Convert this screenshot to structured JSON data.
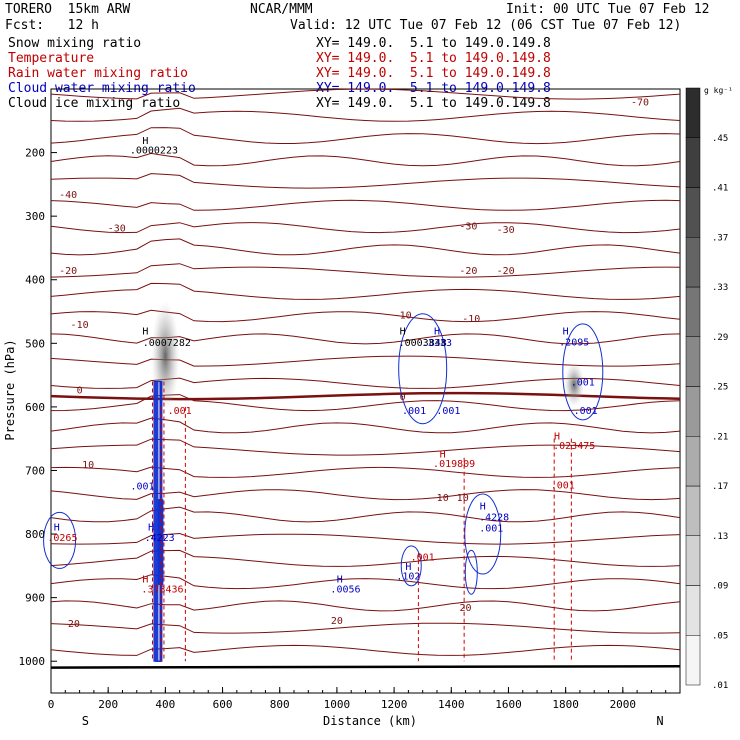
{
  "header": {
    "model": "TORERO  15km ARW",
    "center": "NCAR/MMM",
    "init": "Init: 00 UTC Tue 07 Feb 12",
    "fcst": "Fcst:   12 h",
    "valid": "Valid: 12 UTC Tue 07 Feb 12 (06 CST Tue 07 Feb 12)"
  },
  "fields": [
    {
      "name": "Snow mixing ratio",
      "color": "#000000",
      "xy": ""
    },
    {
      "name": "Temperature",
      "color": "#c00000",
      "xy": "XY= 149.0.  5.1 to 149.0.149.8"
    },
    {
      "name": "Rain water mixing ratio",
      "color": "#c00000",
      "xy": "XY= 149.0.  5.1 to 149.0.149.8"
    },
    {
      "name": "Cloud water mixing ratio",
      "color": "#0000c0",
      "xy": "XY= 149.0.  5.1 to 149.0.149.8"
    },
    {
      "name": "Cloud ice mixing ratio",
      "color": "#000000",
      "xy": "XY= 149.0.  5.1 to 149.0.149.8"
    }
  ],
  "top_xy": "XY= 149.0.  5.1 to 149.0.149.8",
  "chart_data": {
    "type": "cross-section",
    "xlabel": "Distance (km)",
    "ylabel": "Pressure (hPa)",
    "xlim": [
      0,
      2200
    ],
    "ylim": [
      1050,
      100
    ],
    "x_ticks": [
      0,
      200,
      400,
      600,
      800,
      1000,
      1200,
      1400,
      1600,
      1800,
      2000
    ],
    "y_ticks": [
      200,
      300,
      400,
      500,
      600,
      700,
      800,
      900,
      1000
    ],
    "x_end_labels": {
      "left": "S",
      "right": "N"
    },
    "colorbar": {
      "unit": "g kg⁻¹",
      "levels": [
        ".01",
        ".05",
        ".09",
        ".13",
        ".17",
        ".21",
        ".25",
        ".29",
        ".33",
        ".37",
        ".41",
        ".45"
      ]
    },
    "temperature_isotherms": [
      {
        "label": "-70",
        "x": 2060,
        "p": 120,
        "color": "#7a1010"
      },
      {
        "label": "-40",
        "x": 60,
        "p": 265,
        "color": "#7a1010"
      },
      {
        "label": "-30",
        "x": 230,
        "p": 318,
        "color": "#7a1010"
      },
      {
        "label": "-30",
        "x": 1460,
        "p": 315,
        "color": "#7a1010"
      },
      {
        "label": "-30",
        "x": 1590,
        "p": 320,
        "color": "#7a1010"
      },
      {
        "label": "-20",
        "x": 60,
        "p": 385,
        "color": "#7a1010"
      },
      {
        "label": "-20",
        "x": 1460,
        "p": 385,
        "color": "#7a1010"
      },
      {
        "label": "-20",
        "x": 1590,
        "p": 385,
        "color": "#7a1010"
      },
      {
        "label": "-10",
        "x": 100,
        "p": 470,
        "color": "#7a1010"
      },
      {
        "label": "-10",
        "x": 1230,
        "p": 455,
        "color": "#7a1010"
      },
      {
        "label": "-10",
        "x": 1470,
        "p": 460,
        "color": "#7a1010"
      },
      {
        "label": "0",
        "x": 100,
        "p": 573,
        "color": "#7a1010"
      },
      {
        "label": "0",
        "x": 1230,
        "p": 583,
        "color": "#7a1010"
      },
      {
        "label": "10",
        "x": 130,
        "p": 690,
        "color": "#7a1010"
      },
      {
        "label": "10",
        "x": 1370,
        "p": 742,
        "color": "#7a1010"
      },
      {
        "label": "10",
        "x": 1440,
        "p": 742,
        "color": "#7a1010"
      },
      {
        "label": "20",
        "x": 80,
        "p": 940,
        "color": "#7a1010"
      },
      {
        "label": "20",
        "x": 1000,
        "p": 935,
        "color": "#7a1010"
      },
      {
        "label": "20",
        "x": 1450,
        "p": 915,
        "color": "#7a1010"
      }
    ],
    "annotations": [
      {
        "text": "H",
        "x": 330,
        "p": 180,
        "color": "#000000"
      },
      {
        "text": ".0000223",
        "x": 360,
        "p": 195,
        "color": "#000000"
      },
      {
        "text": "H",
        "x": 330,
        "p": 480,
        "color": "#000000"
      },
      {
        "text": ".0007282",
        "x": 405,
        "p": 498,
        "color": "#000000"
      },
      {
        "text": "H",
        "x": 1230,
        "p": 480,
        "color": "#000000"
      },
      {
        "text": ".0003848",
        "x": 1300,
        "p": 498,
        "color": "#000000"
      },
      {
        "text": "H",
        "x": 1350,
        "p": 480,
        "color": "#0000c0"
      },
      {
        "text": ".3333",
        "x": 1350,
        "p": 498,
        "color": "#0000c0"
      },
      {
        "text": "H",
        "x": 1800,
        "p": 480,
        "color": "#0000c0"
      },
      {
        "text": ".2095",
        "x": 1830,
        "p": 497,
        "color": "#0000c0"
      },
      {
        "text": ".001",
        "x": 1860,
        "p": 560,
        "color": "#0000c0"
      },
      {
        "text": ".001",
        "x": 1270,
        "p": 605,
        "color": "#0000c0"
      },
      {
        "text": ".001",
        "x": 1390,
        "p": 605,
        "color": "#0000c0"
      },
      {
        "text": ".001",
        "x": 1870,
        "p": 605,
        "color": "#0000c0"
      },
      {
        "text": ".001",
        "x": 450,
        "p": 605,
        "color": "#c00000"
      },
      {
        "text": "H",
        "x": 1370,
        "p": 673,
        "color": "#c00000"
      },
      {
        "text": ".019809",
        "x": 1410,
        "p": 688,
        "color": "#c00000"
      },
      {
        "text": "H",
        "x": 1770,
        "p": 645,
        "color": "#c00000"
      },
      {
        "text": ".023475",
        "x": 1830,
        "p": 660,
        "color": "#c00000"
      },
      {
        "text": ".001",
        "x": 320,
        "p": 724,
        "color": "#0000c0"
      },
      {
        "text": ".001",
        "x": 1790,
        "p": 722,
        "color": "#c00000"
      },
      {
        "text": "H",
        "x": 1510,
        "p": 755,
        "color": "#0000c0"
      },
      {
        "text": ".4228",
        "x": 1550,
        "p": 772,
        "color": "#0000c0"
      },
      {
        "text": ".001",
        "x": 1540,
        "p": 790,
        "color": "#0000c0"
      },
      {
        "text": "H",
        "x": 20,
        "p": 788,
        "color": "#0000c0"
      },
      {
        "text": ".0265",
        "x": 40,
        "p": 805,
        "color": "#c00000"
      },
      {
        "text": "H",
        "x": 350,
        "p": 788,
        "color": "#0000c0"
      },
      {
        "text": ".4223",
        "x": 380,
        "p": 805,
        "color": "#0000c0"
      },
      {
        "text": ".001",
        "x": 1300,
        "p": 835,
        "color": "#c00000"
      },
      {
        "text": "H",
        "x": 1250,
        "p": 850,
        "color": "#0000c0"
      },
      {
        "text": ".102",
        "x": 1250,
        "p": 865,
        "color": "#0000c0"
      },
      {
        "text": "H",
        "x": 1010,
        "p": 870,
        "color": "#0000c0"
      },
      {
        "text": ".0056",
        "x": 1030,
        "p": 886,
        "color": "#0000c0"
      },
      {
        "text": "H",
        "x": 330,
        "p": 870,
        "color": "#c00000"
      },
      {
        "text": ".373436",
        "x": 390,
        "p": 886,
        "color": "#c00000"
      }
    ]
  }
}
